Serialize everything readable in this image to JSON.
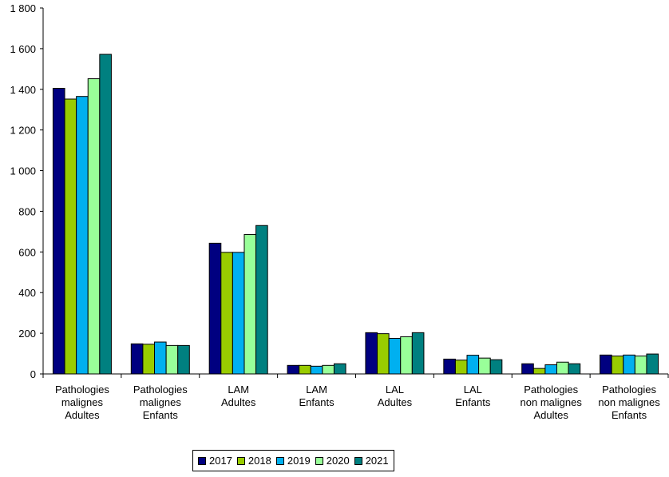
{
  "chart_data": {
    "type": "bar",
    "title": "",
    "xlabel": "",
    "ylabel": "",
    "ylim": [
      0,
      1800
    ],
    "yticks": [
      0,
      200,
      400,
      600,
      800,
      1000,
      1200,
      1400,
      1600,
      1800
    ],
    "ytick_labels": [
      "0",
      "200",
      "400",
      "600",
      "800",
      "1 000",
      "1 200",
      "1 400",
      "1 600",
      "1 800"
    ],
    "grid": false,
    "legend_position": "bottom",
    "categories": [
      [
        "Pathologies",
        "malignes",
        "Adultes"
      ],
      [
        "Pathologies",
        "malignes",
        "Enfants"
      ],
      [
        "LAM",
        "Adultes"
      ],
      [
        "LAM",
        "Enfants"
      ],
      [
        "LAL",
        "Adultes"
      ],
      [
        "LAL",
        "Enfants"
      ],
      [
        "Pathologies",
        "non malignes",
        "Adultes"
      ],
      [
        "Pathologies",
        "non malignes",
        "Enfants"
      ]
    ],
    "series": [
      {
        "name": "2017",
        "color": "#000080",
        "values": [
          1405,
          148,
          643,
          42,
          203,
          73,
          50,
          93
        ]
      },
      {
        "name": "2018",
        "color": "#99cc00",
        "values": [
          1352,
          146,
          598,
          42,
          198,
          68,
          27,
          88
        ]
      },
      {
        "name": "2019",
        "color": "#00b0f0",
        "values": [
          1365,
          157,
          598,
          38,
          175,
          92,
          45,
          93
        ]
      },
      {
        "name": "2020",
        "color": "#99ff99",
        "values": [
          1452,
          140,
          686,
          42,
          183,
          78,
          58,
          88
        ]
      },
      {
        "name": "2021",
        "color": "#008080",
        "values": [
          1572,
          140,
          730,
          50,
          203,
          70,
          50,
          98
        ]
      }
    ]
  }
}
